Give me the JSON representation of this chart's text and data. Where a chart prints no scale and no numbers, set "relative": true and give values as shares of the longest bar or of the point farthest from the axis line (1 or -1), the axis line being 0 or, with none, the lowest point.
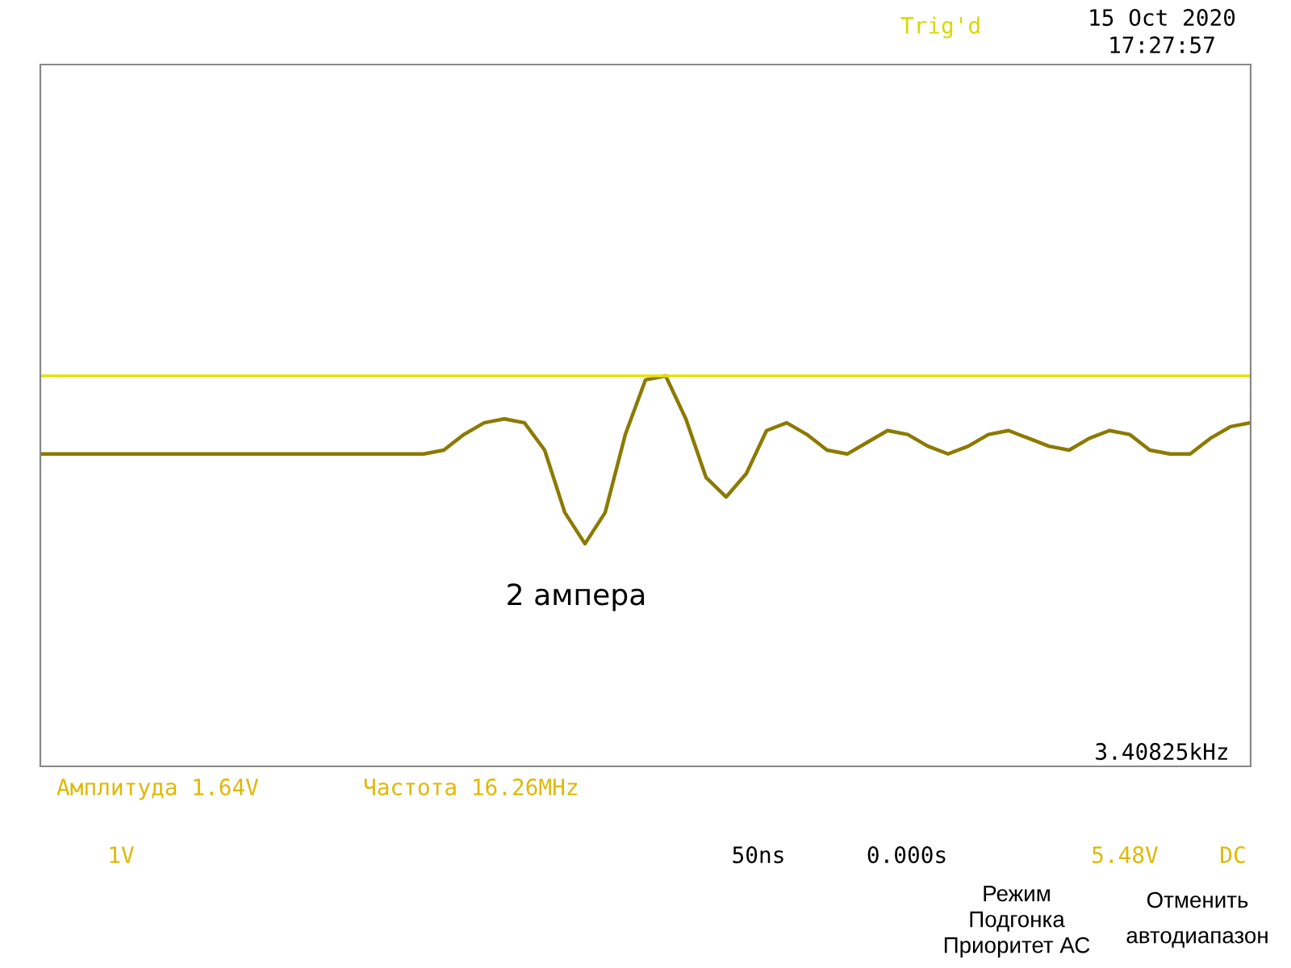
{
  "chart_data": {
    "type": "line",
    "relative": true,
    "categories": [
      null,
      null,
      null,
      null,
      null,
      null,
      null,
      null,
      null,
      null,
      null,
      null,
      null,
      null,
      null,
      null,
      null,
      null,
      null,
      null,
      null,
      null,
      null,
      null,
      null,
      null,
      null,
      null,
      null,
      null,
      null,
      null,
      null,
      null,
      null,
      null,
      null,
      null,
      null,
      null,
      null,
      null,
      null,
      null,
      null,
      null,
      null,
      null,
      null,
      null,
      null,
      null,
      null,
      null,
      null,
      null,
      null,
      null,
      null,
      null,
      null
    ],
    "series": [
      {
        "color": "#8b7a00",
        "values": [
          0.8,
          0.8,
          0.8,
          0.8,
          0.8,
          0.8,
          0.8,
          0.8,
          0.8,
          0.8,
          0.8,
          0.8,
          0.8,
          0.8,
          0.8,
          0.8,
          0.8,
          0.8,
          0.8,
          0.8,
          0.81,
          0.85,
          0.88,
          0.89,
          0.88,
          0.81,
          0.65,
          0.57,
          0.65,
          0.85,
          0.99,
          1,
          0.89,
          0.74,
          0.69,
          0.75,
          0.86,
          0.88,
          0.85,
          0.81,
          0.8,
          0.83,
          0.86,
          0.85,
          0.82,
          0.8,
          0.82,
          0.85,
          0.86,
          0.84,
          0.82,
          0.81,
          0.84,
          0.86,
          0.85,
          0.81,
          0.8,
          0.8,
          0.84,
          0.87,
          0.88
        ]
      }
    ],
    "ref_lines": [
      {
        "axis": "y",
        "value": 1.0,
        "color": "#e8e000"
      }
    ],
    "annotations": [
      "15 Oct 2020",
      "17:27:57",
      "Trig'd",
      "2 ампера",
      "3.40825kHz",
      "Амплитуда 1.64V",
      "Частота 16.26MHz",
      "1V",
      "50ns",
      "0.000s",
      "5.48V",
      "DC",
      "Режим",
      "Подгонка",
      "Приоритет АС",
      "Отменить",
      "автодиапазон"
    ]
  }
}
